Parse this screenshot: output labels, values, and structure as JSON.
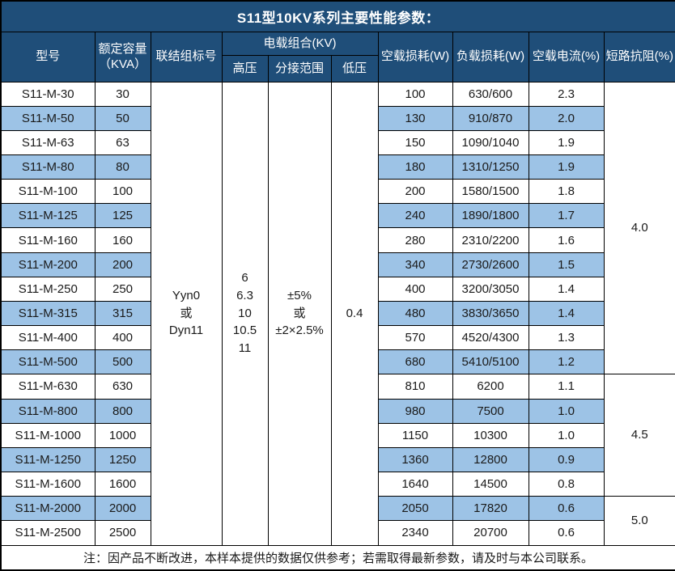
{
  "title": "S11型10KV系列主要性能参数：",
  "header": {
    "model": "型号",
    "capacity": "额定容量\n（KVA）",
    "connection": "联结组标号",
    "voltage_combo": "电载组合(KV)",
    "hv": "高压",
    "tap_range": "分接范围",
    "lv": "低压",
    "no_load_loss": "空载损耗(W)",
    "load_loss": "负载损耗(W)",
    "no_load_current": "空载电流(%)",
    "short_impedance": "短路抗阻(%)"
  },
  "merged": {
    "connection": "Yyn0\n或\nDyn11",
    "hv": "6\n6.3\n10\n10.5\n11",
    "tap_range": "±5%\n或\n±2×2.5%",
    "lv": "0.4"
  },
  "impedance_groups": [
    {
      "value": "4.0",
      "rows": 12
    },
    {
      "value": "4.5",
      "rows": 5
    },
    {
      "value": "5.0",
      "rows": 2
    }
  ],
  "rows": [
    {
      "model": "S11-M-30",
      "capacity": "30",
      "no_load_loss": "100",
      "load_loss": "630/600",
      "no_load_current": "2.3"
    },
    {
      "model": "S11-M-50",
      "capacity": "50",
      "no_load_loss": "130",
      "load_loss": "910/870",
      "no_load_current": "2.0"
    },
    {
      "model": "S11-M-63",
      "capacity": "63",
      "no_load_loss": "150",
      "load_loss": "1090/1040",
      "no_load_current": "1.9"
    },
    {
      "model": "S11-M-80",
      "capacity": "80",
      "no_load_loss": "180",
      "load_loss": "1310/1250",
      "no_load_current": "1.9"
    },
    {
      "model": "S11-M-100",
      "capacity": "100",
      "no_load_loss": "200",
      "load_loss": "1580/1500",
      "no_load_current": "1.8"
    },
    {
      "model": "S11-M-125",
      "capacity": "125",
      "no_load_loss": "240",
      "load_loss": "1890/1800",
      "no_load_current": "1.7"
    },
    {
      "model": "S11-M-160",
      "capacity": "160",
      "no_load_loss": "280",
      "load_loss": "2310/2200",
      "no_load_current": "1.6"
    },
    {
      "model": "S11-M-200",
      "capacity": "200",
      "no_load_loss": "340",
      "load_loss": "2730/2600",
      "no_load_current": "1.5"
    },
    {
      "model": "S11-M-250",
      "capacity": "250",
      "no_load_loss": "400",
      "load_loss": "3200/3050",
      "no_load_current": "1.4"
    },
    {
      "model": "S11-M-315",
      "capacity": "315",
      "no_load_loss": "480",
      "load_loss": "3830/3650",
      "no_load_current": "1.4"
    },
    {
      "model": "S11-M-400",
      "capacity": "400",
      "no_load_loss": "570",
      "load_loss": "4520/4300",
      "no_load_current": "1.3"
    },
    {
      "model": "S11-M-500",
      "capacity": "500",
      "no_load_loss": "680",
      "load_loss": "5410/5100",
      "no_load_current": "1.2"
    },
    {
      "model": "S11-M-630",
      "capacity": "630",
      "no_load_loss": "810",
      "load_loss": "6200",
      "no_load_current": "1.1"
    },
    {
      "model": "S11-M-800",
      "capacity": "800",
      "no_load_loss": "980",
      "load_loss": "7500",
      "no_load_current": "1.0"
    },
    {
      "model": "S11-M-1000",
      "capacity": "1000",
      "no_load_loss": "1150",
      "load_loss": "10300",
      "no_load_current": "1.0"
    },
    {
      "model": "S11-M-1250",
      "capacity": "1250",
      "no_load_loss": "1360",
      "load_loss": "12800",
      "no_load_current": "0.9"
    },
    {
      "model": "S11-M-1600",
      "capacity": "1600",
      "no_load_loss": "1640",
      "load_loss": "14500",
      "no_load_current": "0.8"
    },
    {
      "model": "S11-M-2000",
      "capacity": "2000",
      "no_load_loss": "2050",
      "load_loss": "17820",
      "no_load_current": "0.6"
    },
    {
      "model": "S11-M-2500",
      "capacity": "2500",
      "no_load_loss": "2340",
      "load_loss": "20700",
      "no_load_current": "0.6"
    }
  ],
  "note": "注：因产品不断改进，本样本提供的数据仅供参考；若需取得最新参数，请及时与本公司联系。",
  "colors": {
    "header_bg": "#1F4E79",
    "stripe_bg": "#9DC3E6",
    "border": "#000000",
    "header_text": "#FFFFFF"
  }
}
